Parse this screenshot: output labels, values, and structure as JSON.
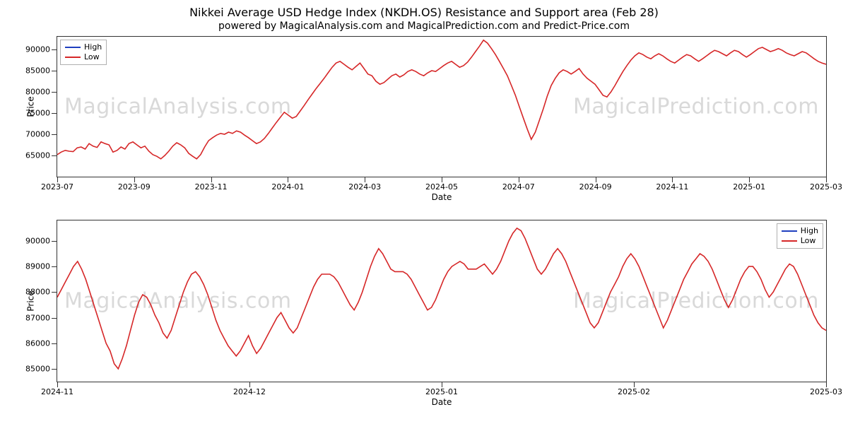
{
  "title": "Nikkei Average USD Hedge Index (NKDH.OS) Resistance and Support area (Feb 28)",
  "subtitle": "powered by MagicalAnalysis.com and MagicalPrediction.com and Predict-Price.com",
  "colors": {
    "high_line": "#1f3fbf",
    "low_line": "#d62728",
    "axis": "#333333",
    "watermark": "#d9d9d9",
    "background": "#ffffff",
    "legend_border": "#b0b0b0"
  },
  "watermark": {
    "text_a": "MagicalAnalysis.com",
    "text_b": "MagicalPrediction.com",
    "fontsize": 30
  },
  "legend": {
    "items": [
      {
        "label": "High",
        "color": "#1f3fbf"
      },
      {
        "label": "Low",
        "color": "#d62728"
      }
    ]
  },
  "top_chart": {
    "type": "line",
    "xlabel": "Date",
    "ylabel": "Price",
    "legend_pos": "top-left",
    "ylim": [
      60000,
      93000
    ],
    "yticks": [
      65000,
      70000,
      75000,
      80000,
      85000,
      90000
    ],
    "xticks": [
      "2023-07",
      "2023-09",
      "2023-11",
      "2024-01",
      "2024-03",
      "2024-05",
      "2024-07",
      "2024-09",
      "2024-11",
      "2025-01",
      "2025-03"
    ],
    "line_width": 1.6,
    "series_low": [
      65200,
      65800,
      66200,
      66000,
      65900,
      66800,
      67000,
      66500,
      67800,
      67200,
      66900,
      68200,
      67800,
      67500,
      65800,
      66200,
      67000,
      66500,
      67800,
      68200,
      67500,
      66800,
      67200,
      66000,
      65200,
      64800,
      64200,
      65000,
      66000,
      67200,
      68000,
      67500,
      66800,
      65500,
      64800,
      64200,
      65200,
      67000,
      68500,
      69200,
      69800,
      70200,
      70000,
      70500,
      70200,
      70800,
      70500,
      69800,
      69200,
      68500,
      67800,
      68200,
      69000,
      70200,
      71500,
      72800,
      74000,
      75200,
      74500,
      73800,
      74200,
      75500,
      76800,
      78200,
      79500,
      80800,
      82000,
      83200,
      84500,
      85800,
      86800,
      87200,
      86500,
      85800,
      85200,
      86000,
      86800,
      85500,
      84200,
      83800,
      82500,
      81800,
      82200,
      83000,
      83800,
      84200,
      83500,
      84000,
      84800,
      85200,
      84800,
      84200,
      83800,
      84500,
      85000,
      84800,
      85500,
      86200,
      86800,
      87200,
      86500,
      85800,
      86200,
      87000,
      88200,
      89500,
      90800,
      92200,
      91500,
      90200,
      88800,
      87200,
      85500,
      83800,
      81500,
      79200,
      76500,
      73800,
      71200,
      68800,
      70500,
      73200,
      76000,
      79000,
      81500,
      83200,
      84500,
      85200,
      84800,
      84200,
      84800,
      85500,
      84200,
      83200,
      82500,
      81800,
      80500,
      79200,
      78800,
      80000,
      81500,
      83200,
      84800,
      86200,
      87500,
      88500,
      89200,
      88800,
      88200,
      87800,
      88500,
      89000,
      88500,
      87800,
      87200,
      86800,
      87500,
      88200,
      88800,
      88500,
      87800,
      87200,
      87800,
      88500,
      89200,
      89800,
      89500,
      89000,
      88500,
      89200,
      89800,
      89500,
      88800,
      88200,
      88800,
      89500,
      90200,
      90500,
      90000,
      89500,
      89800,
      90200,
      89800,
      89200,
      88800,
      88500,
      89000,
      89500,
      89200,
      88500,
      87800,
      87200,
      86800,
      86500
    ]
  },
  "bottom_chart": {
    "type": "line",
    "xlabel": "Date",
    "ylabel": "Price",
    "legend_pos": "top-right",
    "ylim": [
      84500,
      90800
    ],
    "yticks": [
      85000,
      86000,
      87000,
      88000,
      89000,
      90000
    ],
    "xticks": [
      "2024-11",
      "2024-12",
      "2025-01",
      "2025-02",
      "2025-03"
    ],
    "line_width": 1.6,
    "series_low": [
      87800,
      88100,
      88400,
      88700,
      89000,
      89200,
      88900,
      88500,
      88000,
      87500,
      87000,
      86500,
      86000,
      85700,
      85200,
      85000,
      85400,
      85900,
      86500,
      87100,
      87600,
      87900,
      87800,
      87500,
      87100,
      86800,
      86400,
      86200,
      86500,
      87000,
      87500,
      88000,
      88400,
      88700,
      88800,
      88600,
      88300,
      87900,
      87400,
      86900,
      86500,
      86200,
      85900,
      85700,
      85500,
      85700,
      86000,
      86300,
      85900,
      85600,
      85800,
      86100,
      86400,
      86700,
      87000,
      87200,
      86900,
      86600,
      86400,
      86600,
      87000,
      87400,
      87800,
      88200,
      88500,
      88700,
      88700,
      88700,
      88600,
      88400,
      88100,
      87800,
      87500,
      87300,
      87600,
      88000,
      88500,
      89000,
      89400,
      89700,
      89500,
      89200,
      88900,
      88800,
      88800,
      88800,
      88700,
      88500,
      88200,
      87900,
      87600,
      87300,
      87400,
      87700,
      88100,
      88500,
      88800,
      89000,
      89100,
      89200,
      89100,
      88900,
      88900,
      88900,
      89000,
      89100,
      88900,
      88700,
      88900,
      89200,
      89600,
      90000,
      90300,
      90500,
      90400,
      90100,
      89700,
      89300,
      88900,
      88700,
      88900,
      89200,
      89500,
      89700,
      89500,
      89200,
      88800,
      88400,
      88000,
      87600,
      87200,
      86800,
      86600,
      86800,
      87200,
      87600,
      88000,
      88300,
      88600,
      89000,
      89300,
      89500,
      89300,
      89000,
      88600,
      88200,
      87800,
      87400,
      87000,
      86600,
      86900,
      87300,
      87700,
      88100,
      88500,
      88800,
      89100,
      89300,
      89500,
      89400,
      89200,
      88900,
      88500,
      88100,
      87700,
      87400,
      87700,
      88100,
      88500,
      88800,
      89000,
      89000,
      88800,
      88500,
      88100,
      87800,
      88000,
      88300,
      88600,
      88900,
      89100,
      89000,
      88700,
      88300,
      87900,
      87500,
      87100,
      86800,
      86600,
      86500
    ]
  },
  "fontsize": {
    "title": 16,
    "subtitle": 14,
    "axis_label": 12,
    "tick": 11,
    "legend": 11
  }
}
